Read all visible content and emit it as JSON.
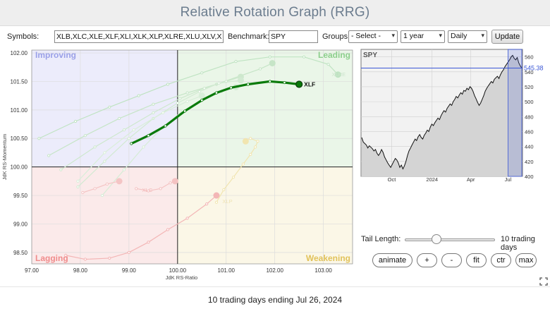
{
  "header": {
    "title": "Relative Rotation Graph (RRG)"
  },
  "controls": {
    "symbols_label": "Symbols:",
    "symbols_value": "XLB,XLC,XLE,XLF,XLI,XLK,XLP,XLRE,XLU,XLV,XLY",
    "benchmark_label": "Benchmark:",
    "benchmark_value": "SPY",
    "groups_label": "Groups:",
    "groups_selected": "- Select -",
    "period_selected": "1 year",
    "frequency_selected": "Daily",
    "update_label": "Update"
  },
  "rrg": {
    "quadrants": {
      "improving": "Improving",
      "leading": "Leading",
      "lagging": "Lagging",
      "weakening": "Weakening"
    },
    "quadrant_colors": {
      "improving": "#ececfb",
      "leading": "#eaf6e8",
      "lagging": "#fbeaea",
      "weakening": "#fbf7e7"
    },
    "x_axis_label": "JdK RS-Ratio",
    "y_axis_label": "JdK RS-Momentum",
    "x_ticks": [
      "97.00",
      "98.00",
      "99.00",
      "100.00",
      "101.00",
      "102.00",
      "103.00"
    ],
    "y_ticks": [
      "102.00",
      "101.50",
      "101.00",
      "100.50",
      "100.00",
      "99.50",
      "99.00",
      "98.50"
    ],
    "highlight": {
      "symbol": "XLF",
      "color": "#0a7a0a",
      "tail": [
        [
          99.05,
          100.41
        ],
        [
          99.4,
          100.55
        ],
        [
          99.75,
          100.72
        ],
        [
          100.15,
          100.98
        ],
        [
          100.5,
          101.17
        ],
        [
          100.8,
          101.3
        ],
        [
          101.1,
          101.39
        ],
        [
          101.45,
          101.45
        ],
        [
          101.9,
          101.5
        ],
        [
          102.2,
          101.48
        ],
        [
          102.5,
          101.45
        ]
      ]
    },
    "faded_labels": [
      {
        "text": "XLRE",
        "rs": 103.1,
        "mom": 101.63,
        "color": "#cce4cc"
      },
      {
        "text": "XLC",
        "rs": 99.2,
        "mom": 99.6,
        "color": "#f3b9b9"
      },
      {
        "text": "XLP",
        "rs": 100.85,
        "mom": 99.4,
        "color": "#efe3b2"
      }
    ],
    "faded_tails": [
      {
        "color": "#bfe3c2",
        "points": [
          [
            97.15,
            100.5
          ],
          [
            97.9,
            100.8
          ],
          [
            98.6,
            101.05
          ],
          [
            99.2,
            101.25
          ],
          [
            99.8,
            101.45
          ],
          [
            100.5,
            101.65
          ],
          [
            101.2,
            101.85
          ],
          [
            101.9,
            101.93
          ],
          [
            102.6,
            101.93
          ],
          [
            103.1,
            101.8
          ],
          [
            103.3,
            101.62
          ]
        ]
      },
      {
        "color": "#c6e5c7",
        "points": [
          [
            97.35,
            100.2
          ],
          [
            98.1,
            100.55
          ],
          [
            98.8,
            100.85
          ],
          [
            99.5,
            101.1
          ],
          [
            100.2,
            101.3
          ],
          [
            100.8,
            101.45
          ],
          [
            101.3,
            101.6
          ],
          [
            101.7,
            101.72
          ],
          [
            101.95,
            101.82
          ]
        ]
      },
      {
        "color": "#cde8cd",
        "points": [
          [
            97.6,
            99.95
          ],
          [
            98.3,
            100.35
          ],
          [
            98.9,
            100.65
          ],
          [
            99.5,
            100.95
          ],
          [
            100.05,
            101.2
          ],
          [
            100.55,
            101.38
          ],
          [
            101.0,
            101.5
          ],
          [
            101.3,
            101.58
          ]
        ]
      },
      {
        "color": "#d2ead2",
        "points": [
          [
            97.95,
            99.65
          ],
          [
            98.5,
            100.1
          ],
          [
            99.0,
            100.5
          ],
          [
            99.5,
            100.85
          ],
          [
            100.0,
            101.12
          ],
          [
            100.45,
            101.32
          ],
          [
            100.85,
            101.47
          ],
          [
            101.3,
            101.52
          ]
        ]
      },
      {
        "color": "#d6ecd6",
        "points": [
          [
            98.45,
            99.5
          ],
          [
            98.9,
            99.95
          ],
          [
            99.3,
            100.35
          ],
          [
            99.7,
            100.7
          ],
          [
            100.1,
            100.98
          ],
          [
            100.5,
            101.18
          ],
          [
            100.9,
            101.32
          ],
          [
            101.2,
            101.4
          ]
        ]
      },
      {
        "color": "#d9eed9",
        "points": [
          [
            97.95,
            99.75
          ],
          [
            98.5,
            100.25
          ],
          [
            99.1,
            100.65
          ],
          [
            99.7,
            100.95
          ],
          [
            100.2,
            101.15
          ],
          [
            100.5,
            101.25
          ]
        ]
      },
      {
        "color": "#f4c2c2",
        "points": [
          [
            99.15,
            99.62
          ],
          [
            99.4,
            99.58
          ],
          [
            99.65,
            99.62
          ],
          [
            99.85,
            99.72
          ],
          [
            99.95,
            99.75
          ]
        ]
      },
      {
        "color": "#f4c5c5",
        "points": [
          [
            98.05,
            99.55
          ],
          [
            98.3,
            99.62
          ],
          [
            98.55,
            99.7
          ],
          [
            98.8,
            99.75
          ]
        ]
      },
      {
        "color": "#f3b6b6",
        "points": [
          [
            97.7,
            98.45
          ],
          [
            98.1,
            98.38
          ],
          [
            98.6,
            98.4
          ],
          [
            99.0,
            98.5
          ],
          [
            99.4,
            98.68
          ],
          [
            99.8,
            98.9
          ],
          [
            100.2,
            99.1
          ],
          [
            100.6,
            99.35
          ],
          [
            100.8,
            99.5
          ]
        ]
      },
      {
        "color": "#f1e5b0",
        "points": [
          [
            100.8,
            99.38
          ],
          [
            100.95,
            99.6
          ],
          [
            101.15,
            99.82
          ],
          [
            101.35,
            100.05
          ],
          [
            101.5,
            100.22
          ],
          [
            101.6,
            100.35
          ],
          [
            101.65,
            100.45
          ],
          [
            101.5,
            100.5
          ],
          [
            101.4,
            100.45
          ]
        ]
      }
    ]
  },
  "spy_chart": {
    "title": "SPY",
    "price_label": "545.38",
    "y_ticks": [
      "560",
      "540",
      "520",
      "500",
      "480",
      "460",
      "440",
      "420",
      "400"
    ],
    "x_ticks": [
      "Oct",
      "2024",
      "Apr",
      "Jul"
    ],
    "y_range": [
      400,
      570
    ],
    "fill_color": "#d4d4d4",
    "line_color": "#111111",
    "marker_color": "#3b57d6",
    "price_series": [
      452,
      446,
      444,
      442,
      438,
      441,
      439,
      437,
      434,
      436,
      431,
      428,
      431,
      436,
      432,
      426,
      422,
      418,
      415,
      412,
      416,
      420,
      424,
      422,
      418,
      412,
      415,
      410,
      414,
      420,
      428,
      434,
      438,
      442,
      446,
      450,
      448,
      453,
      456,
      452,
      450,
      455,
      458,
      462,
      460,
      466,
      470,
      468,
      472,
      475,
      478,
      476,
      481,
      485,
      488,
      486,
      491,
      494,
      497,
      495,
      500,
      503,
      507,
      505,
      509,
      512,
      510,
      515,
      514,
      518,
      516,
      520,
      518,
      514,
      508,
      504,
      499,
      495,
      498,
      503,
      508,
      514,
      518,
      521,
      524,
      527,
      525,
      530,
      532,
      534,
      531,
      536,
      540,
      543,
      547,
      550,
      553,
      556,
      560,
      562,
      558,
      556,
      559,
      552,
      548,
      545
    ]
  },
  "tail_control": {
    "label": "Tail Length:",
    "value": "10 trading days",
    "level": 0.35
  },
  "action_buttons": {
    "animate": "animate",
    "plus": "+",
    "minus": "-",
    "fit": "fit",
    "ctr": "ctr",
    "max": "max"
  },
  "footer": {
    "text": "10 trading days ending Jul 26, 2024"
  }
}
